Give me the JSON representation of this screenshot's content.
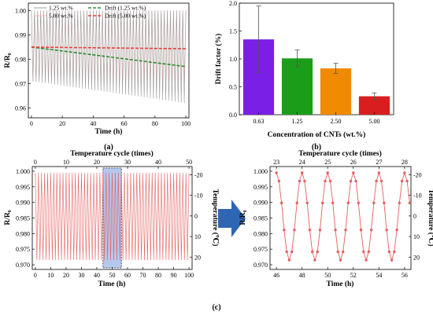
{
  "colors": {
    "r125": "#9a9a9a",
    "r500": "#f2b8b8",
    "d125": "#2e8b2e",
    "d500": "#e8403a",
    "bar063": "#7a1fe6",
    "bar125": "#1a9e1a",
    "bar250": "#f08a00",
    "bar500": "#d81e1e",
    "sig": "#e46060",
    "hl": "#9db4e8",
    "arrow": "#2f66b3"
  },
  "labels": {
    "a": "(a)",
    "b": "(b)",
    "c": "(c)"
  },
  "chart_data": [
    {
      "id": "a",
      "type": "line",
      "xlabel": "Time (h)",
      "ylabel": "R/R₀",
      "xlim": [
        -2,
        102
      ],
      "ylim": [
        0.956,
        1.003
      ],
      "xticks": [
        0,
        20,
        40,
        60,
        80,
        100
      ],
      "yticks": [
        0.96,
        0.97,
        0.98,
        0.99,
        1.0
      ],
      "xtick_labels": [
        "0",
        "20",
        "40",
        "60",
        "80",
        "100"
      ],
      "ytick_labels": [
        "0.96",
        "0.97",
        "0.98",
        "0.99",
        "1.00"
      ],
      "legend": "top-left",
      "series": [
        {
          "name": "1.25 wt.%",
          "style": "solid",
          "cycles": 50,
          "peak": 1.0,
          "trough_start": 0.971,
          "trough_end": 0.962
        },
        {
          "name": "5.00 wt.%",
          "style": "solid",
          "cycles": 50,
          "peak": 1.0,
          "trough_start": 0.971,
          "trough_end": 0.97
        },
        {
          "name": "Drift (1.25 wt.%)",
          "style": "dash",
          "x": [
            0,
            100
          ],
          "y": [
            0.985,
            0.977
          ]
        },
        {
          "name": "Drift (5.00 wt.%)",
          "style": "dash",
          "x": [
            0,
            100
          ],
          "y": [
            0.985,
            0.9843
          ]
        }
      ]
    },
    {
      "id": "b",
      "type": "bar",
      "xlabel": "Concentration of CNTs (wt.%)",
      "ylabel": "Drift factor (%)",
      "ylim": [
        0,
        2.0
      ],
      "yticks": [
        0,
        0.5,
        1.0,
        1.5,
        2.0
      ],
      "ytick_labels": [
        "0.0",
        "0.5",
        "1.0",
        "1.5",
        "2.0"
      ],
      "categories": [
        "0.63",
        "1.25",
        "2.50",
        "5.00"
      ],
      "values": [
        1.35,
        1.01,
        0.83,
        0.33
      ],
      "errors": [
        0.6,
        0.15,
        0.09,
        0.06
      ]
    },
    {
      "id": "c-left",
      "type": "line",
      "xlabel": "Time (h)",
      "ylabel": "R/R₀",
      "x2label": "Temperature cycle (times)",
      "y2label": "Temperature (℃)",
      "xlim": [
        -2,
        102
      ],
      "ylim": [
        0.9685,
        1.0015
      ],
      "xticks": [
        0,
        10,
        20,
        30,
        40,
        50,
        60,
        70,
        80,
        90,
        100
      ],
      "xtick_labels": [
        "0",
        "10",
        "20",
        "30",
        "40",
        "50",
        "60",
        "70",
        "80",
        "90",
        "100"
      ],
      "yticks": [
        0.97,
        0.975,
        0.98,
        0.985,
        0.99,
        0.995,
        1.0
      ],
      "ytick_labels": [
        "0.970",
        "0.975",
        "0.980",
        "0.985",
        "0.990",
        "0.995",
        "1.000"
      ],
      "x2ticks": [
        0,
        10,
        20,
        30,
        40,
        50
      ],
      "x2tick_labels": [
        "0",
        "10",
        "20",
        "30",
        "40",
        "50"
      ],
      "y2ticks": [
        -20,
        -10,
        0,
        10,
        20
      ],
      "y2tick_labels": [
        "-20",
        "-10",
        "0",
        "10",
        "20"
      ],
      "y2lim": [
        26,
        -24
      ],
      "series": [
        {
          "cycles": 50,
          "peak": 0.9995,
          "trough": 0.9715
        }
      ],
      "highlight": {
        "x": [
          44,
          56
        ]
      }
    },
    {
      "id": "c-right",
      "type": "line",
      "xlabel": "Time (h)",
      "ylabel": "R/R₀",
      "x2label": "Temperature cycle (times)",
      "y2label": "Temperature (℃)",
      "xlim": [
        45.5,
        56.5
      ],
      "ylim": [
        0.9685,
        1.0015
      ],
      "xticks": [
        46,
        48,
        50,
        52,
        54,
        56
      ],
      "xtick_labels": [
        "46",
        "48",
        "50",
        "52",
        "54",
        "56"
      ],
      "yticks": [
        0.97,
        0.975,
        0.98,
        0.985,
        0.99,
        0.995,
        1.0
      ],
      "ytick_labels": [
        "0.970",
        "0.975",
        "0.980",
        "0.985",
        "0.990",
        "0.995",
        "1.000"
      ],
      "x2ticks": [
        23,
        24,
        25,
        26,
        27,
        28
      ],
      "x2tick_labels": [
        "23",
        "24",
        "25",
        "26",
        "27",
        "28"
      ],
      "y2ticks": [
        -20,
        -10,
        0,
        10,
        20
      ],
      "y2tick_labels": [
        "-20",
        "-10",
        "0",
        "10",
        "20"
      ],
      "y2lim": [
        26,
        -24
      ],
      "series": [
        {
          "start": 46,
          "period": 2,
          "peak": 0.9995,
          "trough": 0.9715,
          "points_per_cycle": 10
        }
      ]
    }
  ]
}
